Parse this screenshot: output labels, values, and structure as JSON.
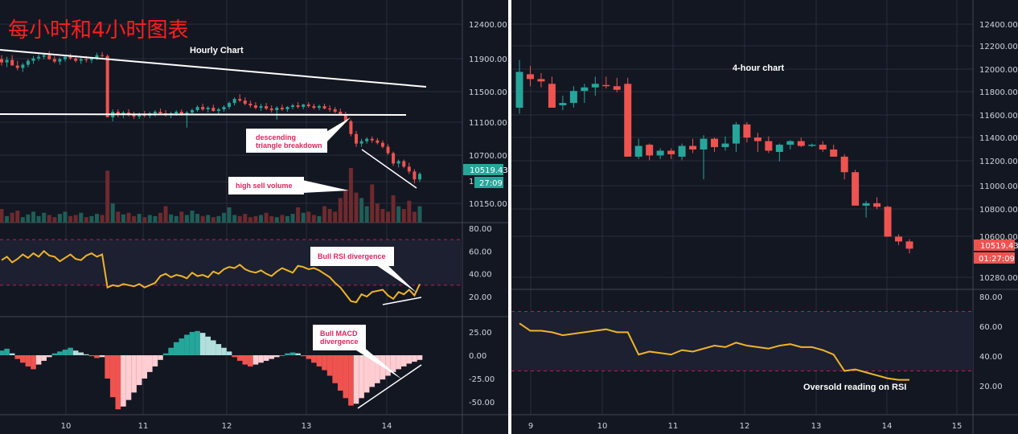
{
  "title": "每小时和4小时图表",
  "colors": {
    "background": "#131722",
    "up": "#26a69a",
    "down": "#ef5350",
    "rsi_line": "#f0b429",
    "band": "#c2185b",
    "trendline": "#ffffff",
    "annotation_text": "#e0245e"
  },
  "chart_data": [
    {
      "type": "candlestick",
      "title": "Hourly Chart",
      "price_axis_ticks": [
        "12400.00",
        "11900.00",
        "11500.00",
        "11100.00",
        "10700.00",
        "10150.00"
      ],
      "x_ticks": [
        "10",
        "11",
        "12",
        "13",
        "14"
      ],
      "last_price": "10519.43",
      "countdown": "27:09",
      "ohlc_hourly": [
        [
          11960,
          12010,
          11880,
          11920
        ],
        [
          11920,
          11990,
          11860,
          11950
        ],
        [
          11950,
          12010,
          11900,
          11880
        ],
        [
          11880,
          11940,
          11820,
          11850
        ],
        [
          11850,
          11910,
          11800,
          11890
        ],
        [
          11890,
          11960,
          11860,
          11940
        ],
        [
          11940,
          12000,
          11900,
          11970
        ],
        [
          11970,
          12020,
          11940,
          11990
        ],
        [
          11990,
          12040,
          11960,
          12010
        ],
        [
          12010,
          12060,
          11950,
          11960
        ],
        [
          11960,
          12000,
          11910,
          11930
        ],
        [
          11930,
          11980,
          11890,
          11960
        ],
        [
          11960,
          12010,
          11930,
          11990
        ],
        [
          11990,
          12030,
          11950,
          11970
        ],
        [
          11970,
          12010,
          11920,
          11940
        ],
        [
          11940,
          11990,
          11900,
          11960
        ],
        [
          11960,
          12000,
          11920,
          11950
        ],
        [
          11950,
          11990,
          11910,
          11970
        ],
        [
          11970,
          12040,
          11950,
          12010
        ],
        [
          12010,
          12050,
          11980,
          12000
        ],
        [
          12000,
          12020,
          11600,
          11230
        ],
        [
          11230,
          11330,
          11180,
          11300
        ],
        [
          11300,
          11330,
          11230,
          11260
        ],
        [
          11260,
          11310,
          11220,
          11290
        ],
        [
          11290,
          11330,
          11240,
          11260
        ],
        [
          11260,
          11300,
          11210,
          11240
        ],
        [
          11240,
          11290,
          11210,
          11270
        ],
        [
          11270,
          11310,
          11230,
          11250
        ],
        [
          11250,
          11300,
          11220,
          11280
        ],
        [
          11280,
          11320,
          11240,
          11300
        ],
        [
          11300,
          11340,
          11260,
          11280
        ],
        [
          11280,
          11320,
          11240,
          11260
        ],
        [
          11260,
          11300,
          11220,
          11280
        ],
        [
          11280,
          11320,
          11250,
          11300
        ],
        [
          11300,
          11330,
          11250,
          11270
        ],
        [
          11270,
          11310,
          11100,
          11290
        ],
        [
          11290,
          11340,
          11260,
          11320
        ],
        [
          11320,
          11380,
          11300,
          11360
        ],
        [
          11360,
          11400,
          11310,
          11330
        ],
        [
          11330,
          11370,
          11290,
          11350
        ],
        [
          11350,
          11390,
          11300,
          11310
        ],
        [
          11310,
          11350,
          11270,
          11330
        ],
        [
          11330,
          11380,
          11300,
          11360
        ],
        [
          11360,
          11430,
          11330,
          11410
        ],
        [
          11410,
          11480,
          11380,
          11460
        ],
        [
          11460,
          11520,
          11420,
          11440
        ],
        [
          11440,
          11480,
          11380,
          11400
        ],
        [
          11400,
          11440,
          11350,
          11380
        ],
        [
          11380,
          11420,
          11330,
          11350
        ],
        [
          11350,
          11400,
          11310,
          11370
        ],
        [
          11370,
          11410,
          11320,
          11340
        ],
        [
          11340,
          11380,
          11290,
          11320
        ],
        [
          11320,
          11370,
          11200,
          11350
        ],
        [
          11350,
          11390,
          11310,
          11330
        ],
        [
          11330,
          11370,
          11300,
          11360
        ],
        [
          11360,
          11400,
          11330,
          11380
        ],
        [
          11380,
          11420,
          11340,
          11360
        ],
        [
          11360,
          11400,
          11330,
          11390
        ],
        [
          11390,
          11420,
          11350,
          11370
        ],
        [
          11370,
          11400,
          11330,
          11350
        ],
        [
          11350,
          11390,
          11320,
          11370
        ],
        [
          11370,
          11400,
          11330,
          11340
        ],
        [
          11340,
          11380,
          11300,
          11330
        ],
        [
          11330,
          11360,
          11280,
          11300
        ],
        [
          11300,
          11340,
          11250,
          11270
        ],
        [
          11270,
          11300,
          11160,
          11180
        ],
        [
          11180,
          11200,
          10990,
          11020
        ],
        [
          11020,
          11060,
          10860,
          10900
        ],
        [
          10900,
          10960,
          10860,
          10930
        ],
        [
          10930,
          10980,
          10900,
          10960
        ],
        [
          10960,
          10990,
          10910,
          10940
        ],
        [
          10940,
          10970,
          10890,
          10910
        ],
        [
          10910,
          10940,
          10840,
          10860
        ],
        [
          10860,
          10890,
          10760,
          10780
        ],
        [
          10780,
          10800,
          10620,
          10650
        ],
        [
          10650,
          10700,
          10600,
          10680
        ],
        [
          10680,
          10700,
          10590,
          10610
        ],
        [
          10610,
          10660,
          10520,
          10550
        ],
        [
          10550,
          10580,
          10400,
          10450
        ],
        [
          10450,
          10540,
          10420,
          10519.43
        ]
      ],
      "volume_hourly": [
        0.25,
        0.12,
        0.18,
        0.22,
        0.1,
        0.15,
        0.2,
        0.12,
        0.18,
        0.14,
        0.1,
        0.16,
        0.2,
        0.12,
        0.14,
        0.18,
        0.1,
        0.12,
        0.16,
        0.14,
        0.95,
        0.35,
        0.2,
        0.15,
        0.18,
        0.12,
        0.16,
        0.1,
        0.14,
        0.12,
        0.18,
        0.3,
        0.15,
        0.12,
        0.2,
        0.14,
        0.22,
        0.16,
        0.12,
        0.14,
        0.1,
        0.12,
        0.18,
        0.28,
        0.14,
        0.12,
        0.16,
        0.1,
        0.12,
        0.14,
        0.18,
        0.12,
        0.1,
        0.14,
        0.12,
        0.16,
        0.28,
        0.18,
        0.2,
        0.14,
        0.12,
        0.3,
        0.25,
        0.2,
        0.45,
        0.6,
        1.0,
        0.55,
        0.45,
        0.3,
        0.7,
        0.35,
        0.25,
        0.2,
        0.5,
        0.3,
        0.25,
        0.4,
        0.2,
        0.3
      ],
      "rsi": {
        "range": [
          0,
          85
        ],
        "ticks": [
          "80.00",
          "60.00",
          "40.00",
          "20.00"
        ],
        "upper_band": 70,
        "lower_band": 30,
        "values": [
          52,
          55,
          50,
          53,
          57,
          54,
          58,
          55,
          60,
          56,
          55,
          51,
          54,
          57,
          53,
          52,
          56,
          58,
          55,
          57,
          28,
          30,
          29,
          31,
          30,
          29,
          31,
          28,
          30,
          32,
          38,
          40,
          37,
          39,
          38,
          36,
          41,
          38,
          39,
          37,
          42,
          40,
          44,
          46,
          45,
          48,
          44,
          42,
          41,
          43,
          40,
          38,
          42,
          45,
          43,
          41,
          47,
          46,
          44,
          45,
          43,
          40,
          37,
          32,
          28,
          22,
          16,
          15,
          22,
          20,
          24,
          25,
          26,
          21,
          18,
          24,
          22,
          26,
          21,
          31
        ]
      },
      "macd": {
        "range": [
          -65,
          35
        ],
        "ticks": [
          "25.00",
          "0.00",
          "-25.00",
          "-50.00"
        ],
        "histogram": [
          5,
          7,
          2,
          -4,
          -8,
          -12,
          -15,
          -10,
          -6,
          -2,
          2,
          4,
          6,
          8,
          5,
          3,
          1,
          -1,
          -3,
          -2,
          -25,
          -45,
          -58,
          -55,
          -48,
          -40,
          -32,
          -25,
          -18,
          -12,
          -5,
          2,
          8,
          14,
          18,
          22,
          25,
          26,
          24,
          20,
          16,
          12,
          8,
          4,
          -2,
          -6,
          -10,
          -12,
          -10,
          -8,
          -6,
          -4,
          -2,
          0,
          2,
          3,
          2,
          -1,
          -4,
          -8,
          -12,
          -16,
          -22,
          -30,
          -38,
          -46,
          -54,
          -52,
          -46,
          -40,
          -34,
          -30,
          -26,
          -22,
          -18,
          -15,
          -12,
          -9,
          -7,
          -5
        ]
      },
      "annotations": {
        "title": "Hourly Chart",
        "descending": "descending",
        "triangle_breakdown": "triangle breakdown",
        "high_sell_volume": "high sell volume",
        "bull_rsi_divergence": "Bull RSI divergence",
        "bull_macd": "Bull MACD",
        "divergence": "divergence"
      }
    },
    {
      "type": "candlestick",
      "title": "4-hour chart",
      "price_axis_ticks": [
        "12400.00",
        "12200.00",
        "12000.00",
        "11800.00",
        "11600.00",
        "11400.00",
        "11200.00",
        "11000.00",
        "10800.00",
        "10600.00",
        "10280.00"
      ],
      "x_ticks": [
        "9",
        "10",
        "11",
        "12",
        "13",
        "14",
        "15"
      ],
      "last_price": "10519.43",
      "countdown": "01:27:09",
      "ohlc_4h": [
        [
          11700,
          12100,
          11650,
          12000
        ],
        [
          11980,
          12050,
          11880,
          11940
        ],
        [
          11940,
          11990,
          11870,
          11920
        ],
        [
          11900,
          11960,
          11780,
          11700
        ],
        [
          11720,
          11800,
          11680,
          11740
        ],
        [
          11740,
          11880,
          11700,
          11840
        ],
        [
          11840,
          11900,
          11740,
          11870
        ],
        [
          11870,
          11960,
          11800,
          11900
        ],
        [
          11890,
          11960,
          11860,
          11880
        ],
        [
          11880,
          11950,
          11830,
          11850
        ],
        [
          11900,
          11950,
          11600,
          11290
        ],
        [
          11290,
          11440,
          11270,
          11380
        ],
        [
          11390,
          11400,
          11260,
          11300
        ],
        [
          11300,
          11360,
          11270,
          11340
        ],
        [
          11340,
          11360,
          11270,
          11310
        ],
        [
          11290,
          11400,
          11260,
          11380
        ],
        [
          11380,
          11440,
          11320,
          11350
        ],
        [
          11350,
          11470,
          11100,
          11440
        ],
        [
          11440,
          11450,
          11330,
          11370
        ],
        [
          11370,
          11460,
          11340,
          11400
        ],
        [
          11400,
          11580,
          11330,
          11560
        ],
        [
          11560,
          11580,
          11410,
          11450
        ],
        [
          11450,
          11490,
          11330,
          11420
        ],
        [
          11420,
          11460,
          11320,
          11340
        ],
        [
          11330,
          11400,
          11250,
          11390
        ],
        [
          11390,
          11430,
          11350,
          11420
        ],
        [
          11420,
          11450,
          11370,
          11380
        ],
        [
          11380,
          11400,
          11370,
          11390
        ],
        [
          11390,
          11420,
          11330,
          11350
        ],
        [
          11350,
          11390,
          11320,
          11290
        ],
        [
          11290,
          11310,
          11100,
          11160
        ],
        [
          11160,
          11180,
          10900,
          10880
        ],
        [
          10880,
          10920,
          10780,
          10900
        ],
        [
          10900,
          10950,
          10850,
          10870
        ],
        [
          10870,
          10880,
          10620,
          10620
        ],
        [
          10620,
          10640,
          10550,
          10580
        ],
        [
          10580,
          10600,
          10480,
          10519.43
        ]
      ],
      "rsi": {
        "range": [
          10,
          85
        ],
        "ticks": [
          "80.00",
          "60.00",
          "40.00",
          "20.00"
        ],
        "upper_band": 70,
        "lower_band": 30,
        "values": [
          62,
          57,
          57,
          56,
          54,
          55,
          56,
          57,
          58,
          56,
          56,
          41,
          43,
          42,
          41,
          44,
          43,
          45,
          47,
          46,
          49,
          47,
          46,
          45,
          47,
          48,
          46,
          46,
          44,
          41,
          30,
          31,
          29,
          27,
          25,
          24,
          24
        ]
      },
      "annotations": {
        "title": "4-hour chart",
        "oversold": "Oversold reading on RSI"
      }
    }
  ]
}
